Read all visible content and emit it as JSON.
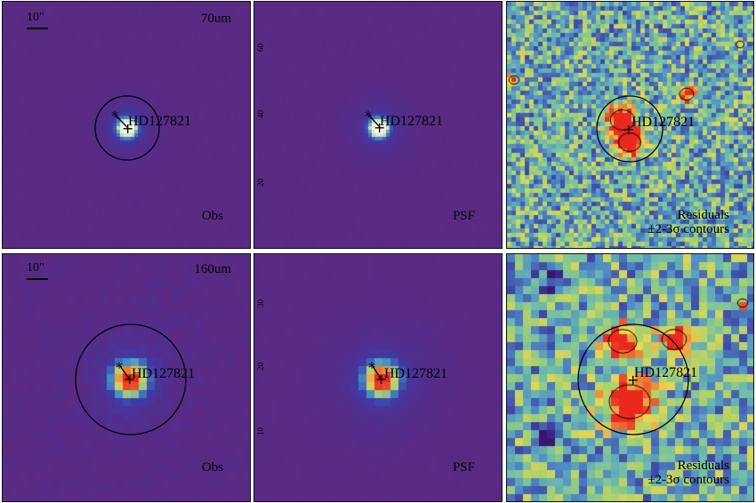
{
  "panels": [
    {
      "id": "p70obs",
      "band": "70um",
      "scale": "10\"",
      "corner": "Obs",
      "source": "HD127821",
      "kind": "obs",
      "peak": "compact",
      "ticks": []
    },
    {
      "id": "p70psf",
      "band": "",
      "scale": "",
      "corner": "PSF",
      "source": "HD127821",
      "kind": "psf",
      "peak": "compact",
      "ticks": [
        "60",
        "40",
        "20"
      ]
    },
    {
      "id": "p70res",
      "band": "",
      "scale": "",
      "corner": "Residuals",
      "corner2": "±2-3σ contours",
      "source": "HD127821",
      "kind": "res",
      "ticks": []
    },
    {
      "id": "p160obs",
      "band": "160um",
      "scale": "10\"",
      "corner": "Obs",
      "source": "HD127821",
      "kind": "obs",
      "peak": "broad",
      "ticks": []
    },
    {
      "id": "p160psf",
      "band": "",
      "scale": "",
      "corner": "PSF",
      "source": "HD127821",
      "kind": "psf",
      "peak": "broad",
      "ticks": [
        "30",
        "20",
        "10"
      ]
    },
    {
      "id": "p160res",
      "band": "",
      "scale": "",
      "corner": "Residuals",
      "corner2": "±2-3σ contours",
      "source": "HD127821",
      "kind": "res",
      "ticks": []
    }
  ],
  "colors": {
    "background": "#5a2a84",
    "frame": "#111111",
    "contour": "#000000"
  }
}
